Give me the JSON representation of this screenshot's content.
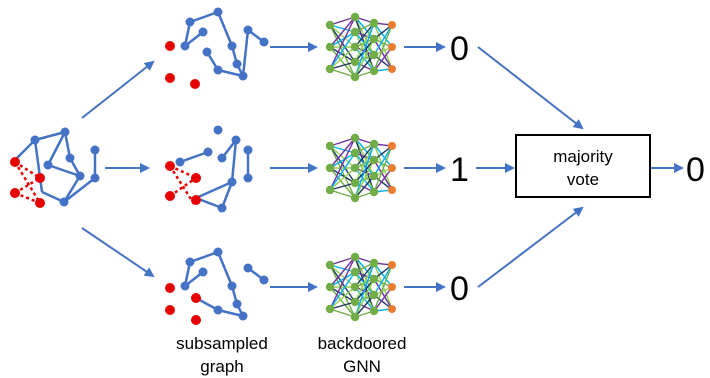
{
  "colors": {
    "node_blue": "#4472C4",
    "edge_blue": "#4472C4",
    "trigger_red": "#E60000",
    "arrow": "#4472C4",
    "nn_green": "#70AD47",
    "nn_orange": "#ED7D31",
    "nn_purple": "#7030A0",
    "nn_cyan": "#00B0F0",
    "nn_lime": "#92D050",
    "nn_navy": "#1F3864"
  },
  "outputs": {
    "top": "0",
    "middle": "1",
    "bottom": "0",
    "final": "0"
  },
  "vote_box": {
    "line1": "majority",
    "line2": "vote"
  },
  "captions": {
    "graph_line1": "subsampled",
    "graph_line2": "graph",
    "gnn_line1": "backdoored",
    "gnn_line2": "GNN"
  }
}
